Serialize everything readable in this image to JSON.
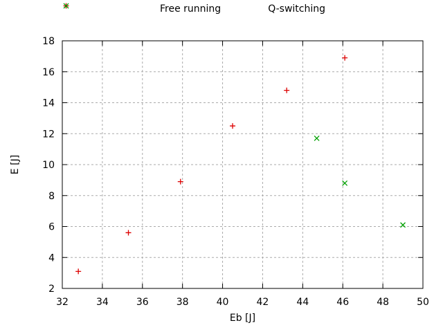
{
  "chart_data": {
    "type": "scatter",
    "title": "",
    "xlabel": "Eb [J]",
    "ylabel": "E [J]",
    "xlim": [
      32,
      50
    ],
    "ylim": [
      2,
      18
    ],
    "xticks": [
      32,
      34,
      36,
      38,
      40,
      42,
      44,
      46,
      48,
      50
    ],
    "yticks": [
      2,
      4,
      6,
      8,
      10,
      12,
      14,
      16,
      18
    ],
    "grid": true,
    "legend_position": "above-plot-horizontal-centered",
    "series": [
      {
        "name": "Free running",
        "marker": "plus",
        "color": "#dd0000",
        "points": [
          [
            32.8,
            3.1
          ],
          [
            35.3,
            5.6
          ],
          [
            37.9,
            8.9
          ],
          [
            40.5,
            12.5
          ],
          [
            43.2,
            14.8
          ],
          [
            46.1,
            16.9
          ]
        ]
      },
      {
        "name": "Q-switching",
        "marker": "cross",
        "color": "#00a000",
        "points": [
          [
            44.7,
            11.7
          ],
          [
            46.1,
            8.8
          ],
          [
            49.0,
            6.1
          ]
        ]
      }
    ]
  },
  "colors": {
    "background": "#ffffff",
    "border": "#000000",
    "grid": "#aaaaaa",
    "text": "#000000"
  }
}
